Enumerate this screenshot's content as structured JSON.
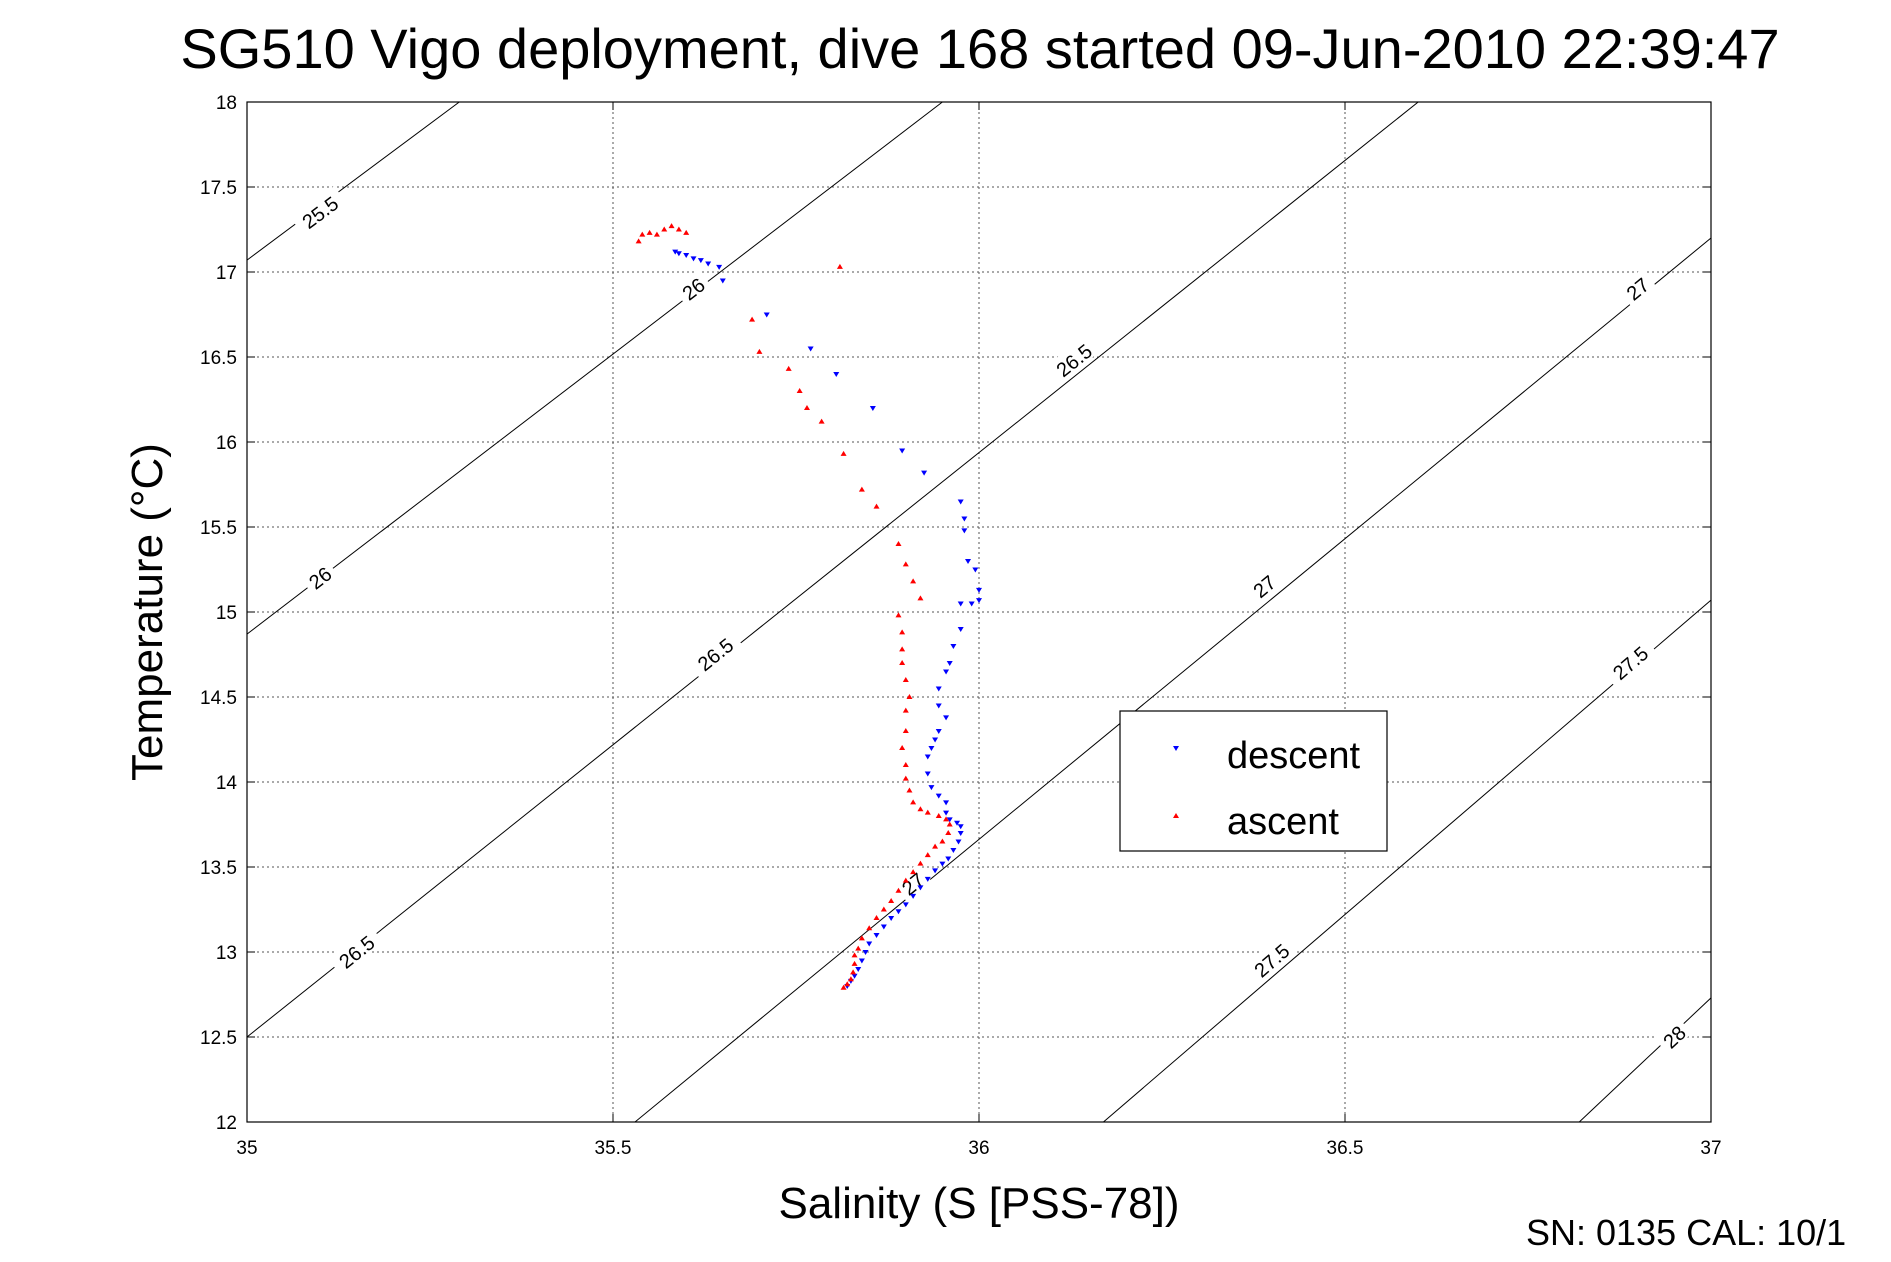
{
  "chart_data": {
    "type": "scatter",
    "title": "SG510 Vigo deployment, dive 168 started 09-Jun-2010 22:39:47",
    "xlabel": "Salinity (S [PSS-78])",
    "ylabel": "Temperature (°C)",
    "xlim": [
      35,
      37
    ],
    "ylim": [
      12,
      18
    ],
    "x_ticks": [
      "35",
      "35.5",
      "36",
      "36.5",
      "37"
    ],
    "y_ticks": [
      "12",
      "12.5",
      "13",
      "13.5",
      "14",
      "14.5",
      "15",
      "15.5",
      "16",
      "16.5",
      "17",
      "17.5",
      "18"
    ],
    "grid": true,
    "legend_position": "center-right",
    "footer": "SN: 0135  CAL: 10/1",
    "density_contours": [
      {
        "label": "25.5",
        "points": [
          [
            35.0,
            17.07
          ],
          [
            35.29,
            18.0
          ]
        ],
        "label_at": [
          [
            35.1,
            17.35
          ]
        ]
      },
      {
        "label": "26",
        "points": [
          [
            35.0,
            14.87
          ],
          [
            35.95,
            18.0
          ]
        ],
        "label_at": [
          [
            35.1,
            15.2
          ],
          [
            35.61,
            16.9
          ]
        ]
      },
      {
        "label": "26.5",
        "points": [
          [
            35.0,
            12.5
          ],
          [
            36.6,
            18.0
          ]
        ],
        "label_at": [
          [
            35.15,
            13.0
          ],
          [
            35.64,
            14.75
          ],
          [
            36.13,
            16.48
          ]
        ]
      },
      {
        "label": "27",
        "points": [
          [
            35.53,
            12.0
          ],
          [
            37.0,
            17.2
          ]
        ],
        "label_at": [
          [
            35.91,
            13.4
          ],
          [
            36.39,
            15.15
          ],
          [
            36.9,
            16.9
          ]
        ]
      },
      {
        "label": "27.5",
        "points": [
          [
            36.17,
            12.0
          ],
          [
            37.0,
            15.07
          ]
        ],
        "label_at": [
          [
            36.4,
            12.95
          ],
          [
            36.89,
            14.7
          ]
        ]
      },
      {
        "label": "28",
        "points": [
          [
            36.82,
            12.0
          ],
          [
            37.0,
            12.73
          ]
        ],
        "label_at": [
          [
            36.95,
            12.5
          ]
        ]
      }
    ],
    "series": [
      {
        "name": "descent",
        "color": "#0000ff",
        "marker": "triangle-down",
        "points": [
          [
            35.585,
            17.12
          ],
          [
            35.59,
            17.11
          ],
          [
            35.6,
            17.1
          ],
          [
            35.61,
            17.08
          ],
          [
            35.62,
            17.07
          ],
          [
            35.63,
            17.05
          ],
          [
            35.645,
            17.03
          ],
          [
            35.65,
            16.95
          ],
          [
            35.71,
            16.75
          ],
          [
            35.77,
            16.55
          ],
          [
            35.805,
            16.4
          ],
          [
            35.855,
            16.2
          ],
          [
            35.895,
            15.95
          ],
          [
            35.925,
            15.82
          ],
          [
            35.975,
            15.65
          ],
          [
            35.98,
            15.55
          ],
          [
            35.98,
            15.48
          ],
          [
            35.985,
            15.3
          ],
          [
            35.995,
            15.25
          ],
          [
            36.0,
            15.13
          ],
          [
            36.0,
            15.07
          ],
          [
            35.99,
            15.05
          ],
          [
            35.975,
            15.05
          ],
          [
            35.975,
            14.9
          ],
          [
            35.965,
            14.8
          ],
          [
            35.96,
            14.7
          ],
          [
            35.955,
            14.65
          ],
          [
            35.945,
            14.55
          ],
          [
            35.945,
            14.45
          ],
          [
            35.955,
            14.38
          ],
          [
            35.945,
            14.3
          ],
          [
            35.94,
            14.25
          ],
          [
            35.935,
            14.2
          ],
          [
            35.93,
            14.15
          ],
          [
            35.93,
            14.05
          ],
          [
            35.935,
            13.97
          ],
          [
            35.945,
            13.92
          ],
          [
            35.955,
            13.88
          ],
          [
            35.955,
            13.82
          ],
          [
            35.96,
            13.78
          ],
          [
            35.97,
            13.76
          ],
          [
            35.975,
            13.74
          ],
          [
            35.975,
            13.7
          ],
          [
            35.972,
            13.65
          ],
          [
            35.965,
            13.6
          ],
          [
            35.958,
            13.55
          ],
          [
            35.95,
            13.52
          ],
          [
            35.94,
            13.48
          ],
          [
            35.93,
            13.43
          ],
          [
            35.92,
            13.38
          ],
          [
            35.91,
            13.33
          ],
          [
            35.9,
            13.28
          ],
          [
            35.89,
            13.24
          ],
          [
            35.88,
            13.2
          ],
          [
            35.87,
            13.15
          ],
          [
            35.86,
            13.1
          ],
          [
            35.85,
            13.05
          ],
          [
            35.845,
            13.0
          ],
          [
            35.84,
            12.95
          ],
          [
            35.835,
            12.9
          ],
          [
            35.83,
            12.86
          ],
          [
            35.825,
            12.83
          ],
          [
            35.82,
            12.8
          ]
        ]
      },
      {
        "name": "ascent",
        "color": "#ff0000",
        "marker": "triangle-up",
        "points": [
          [
            35.535,
            17.18
          ],
          [
            35.54,
            17.22
          ],
          [
            35.55,
            17.23
          ],
          [
            35.56,
            17.22
          ],
          [
            35.57,
            17.25
          ],
          [
            35.58,
            17.27
          ],
          [
            35.59,
            17.25
          ],
          [
            35.6,
            17.23
          ],
          [
            35.81,
            17.03
          ],
          [
            35.69,
            16.72
          ],
          [
            35.7,
            16.53
          ],
          [
            35.74,
            16.43
          ],
          [
            35.755,
            16.3
          ],
          [
            35.765,
            16.2
          ],
          [
            35.785,
            16.12
          ],
          [
            35.815,
            15.93
          ],
          [
            35.84,
            15.72
          ],
          [
            35.86,
            15.62
          ],
          [
            35.89,
            15.4
          ],
          [
            35.9,
            15.28
          ],
          [
            35.91,
            15.18
          ],
          [
            35.92,
            15.08
          ],
          [
            35.89,
            14.98
          ],
          [
            35.895,
            14.88
          ],
          [
            35.895,
            14.78
          ],
          [
            35.895,
            14.7
          ],
          [
            35.9,
            14.6
          ],
          [
            35.905,
            14.5
          ],
          [
            35.9,
            14.42
          ],
          [
            35.9,
            14.3
          ],
          [
            35.895,
            14.2
          ],
          [
            35.9,
            14.1
          ],
          [
            35.9,
            14.02
          ],
          [
            35.905,
            13.95
          ],
          [
            35.91,
            13.88
          ],
          [
            35.92,
            13.84
          ],
          [
            35.93,
            13.82
          ],
          [
            35.945,
            13.8
          ],
          [
            35.955,
            13.78
          ],
          [
            35.96,
            13.75
          ],
          [
            35.958,
            13.7
          ],
          [
            35.95,
            13.65
          ],
          [
            35.94,
            13.62
          ],
          [
            35.93,
            13.57
          ],
          [
            35.92,
            13.52
          ],
          [
            35.91,
            13.47
          ],
          [
            35.9,
            13.42
          ],
          [
            35.89,
            13.36
          ],
          [
            35.88,
            13.3
          ],
          [
            35.87,
            13.25
          ],
          [
            35.86,
            13.2
          ],
          [
            35.85,
            13.14
          ],
          [
            35.84,
            13.08
          ],
          [
            35.835,
            13.02
          ],
          [
            35.83,
            12.98
          ],
          [
            35.83,
            12.93
          ],
          [
            35.828,
            12.88
          ],
          [
            35.825,
            12.84
          ],
          [
            35.82,
            12.81
          ],
          [
            35.815,
            12.79
          ]
        ]
      }
    ]
  }
}
